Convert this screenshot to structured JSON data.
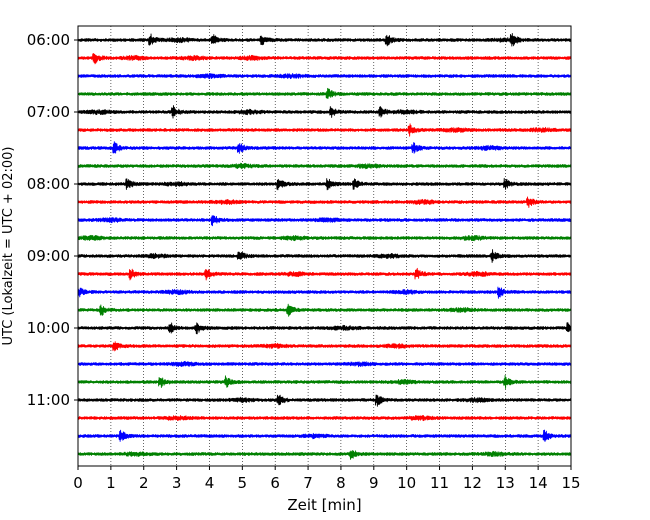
{
  "chart_data": {
    "type": "line",
    "title": "",
    "xlabel": "Zeit  [min]",
    "ylabel": "UTC (Lokalzeit = UTC + 02:00)",
    "xlim": [
      0,
      15
    ],
    "x_ticks": [
      0,
      1,
      2,
      3,
      4,
      5,
      6,
      7,
      8,
      9,
      10,
      11,
      12,
      13,
      14,
      15
    ],
    "y_tick_labels": [
      "06:00",
      "07:00",
      "08:00",
      "09:00",
      "10:00",
      "11:00"
    ],
    "y_tick_trace_index": [
      0,
      4,
      8,
      12,
      16,
      20
    ],
    "x_grid": true,
    "y_grid": false,
    "legend": "none",
    "color_cycle": [
      "#000000",
      "#ff0000",
      "#0000ff",
      "#008000"
    ],
    "traces": [
      {
        "start": "06:00",
        "color": "#000000",
        "events": [
          2.2,
          4.1,
          5.6,
          9.4,
          13.2
        ],
        "bursts": [
          3.1,
          13.0
        ]
      },
      {
        "start": "06:15",
        "color": "#ff0000",
        "events": [
          0.5
        ],
        "bursts": [
          1.7,
          3.5,
          5.3
        ]
      },
      {
        "start": "06:30",
        "color": "#0000ff",
        "events": [],
        "bursts": [
          4.0,
          6.5
        ]
      },
      {
        "start": "06:45",
        "color": "#008000",
        "events": [
          7.6
        ],
        "bursts": []
      },
      {
        "start": "07:00",
        "color": "#000000",
        "events": [
          2.9,
          7.7,
          9.2
        ],
        "bursts": [
          0.6,
          5.2,
          10.0
        ]
      },
      {
        "start": "07:15",
        "color": "#ff0000",
        "events": [
          10.1
        ],
        "bursts": [
          11.5,
          14.1
        ]
      },
      {
        "start": "07:30",
        "color": "#0000ff",
        "events": [
          1.1,
          4.9,
          10.2
        ],
        "bursts": [
          12.5
        ]
      },
      {
        "start": "07:45",
        "color": "#008000",
        "events": [],
        "bursts": [
          5.0,
          8.8
        ]
      },
      {
        "start": "08:00",
        "color": "#000000",
        "events": [
          1.5,
          6.1,
          7.6,
          8.4,
          13.0
        ],
        "bursts": [
          3.0
        ]
      },
      {
        "start": "08:15",
        "color": "#ff0000",
        "events": [
          13.7
        ],
        "bursts": [
          4.5,
          10.5
        ]
      },
      {
        "start": "08:30",
        "color": "#0000ff",
        "events": [
          4.1
        ],
        "bursts": [
          1.0,
          7.6
        ]
      },
      {
        "start": "08:45",
        "color": "#008000",
        "events": [],
        "bursts": [
          0.4,
          6.6,
          12.0
        ]
      },
      {
        "start": "09:00",
        "color": "#000000",
        "events": [
          4.9,
          12.6
        ],
        "bursts": [
          2.4,
          9.4
        ]
      },
      {
        "start": "09:15",
        "color": "#ff0000",
        "events": [
          1.6,
          3.9,
          10.3
        ],
        "bursts": [
          6.6,
          12.2
        ]
      },
      {
        "start": "09:30",
        "color": "#0000ff",
        "events": [
          0.0,
          12.8
        ],
        "bursts": [
          3.0,
          10.0
        ]
      },
      {
        "start": "09:45",
        "color": "#008000",
        "events": [
          0.7,
          6.4
        ],
        "bursts": [
          11.7
        ]
      },
      {
        "start": "10:00",
        "color": "#000000",
        "events": [
          2.8,
          3.6,
          14.9
        ],
        "bursts": [
          8.1
        ]
      },
      {
        "start": "10:15",
        "color": "#ff0000",
        "events": [
          1.1
        ],
        "bursts": [
          6.0,
          9.7
        ]
      },
      {
        "start": "10:30",
        "color": "#0000ff",
        "events": [],
        "bursts": [
          3.2,
          8.6
        ]
      },
      {
        "start": "10:45",
        "color": "#008000",
        "events": [
          2.5,
          4.5,
          13.0
        ],
        "bursts": [
          9.9
        ]
      },
      {
        "start": "11:00",
        "color": "#000000",
        "events": [
          6.1,
          9.1
        ],
        "bursts": [
          5.0,
          12.1
        ]
      },
      {
        "start": "11:15",
        "color": "#ff0000",
        "events": [],
        "bursts": [
          3.0,
          10.4
        ]
      },
      {
        "start": "11:30",
        "color": "#0000ff",
        "events": [
          1.3,
          14.2
        ],
        "bursts": [
          7.2
        ]
      },
      {
        "start": "11:45",
        "color": "#008000",
        "events": [
          8.3
        ],
        "bursts": [
          1.8,
          12.7
        ]
      }
    ]
  }
}
